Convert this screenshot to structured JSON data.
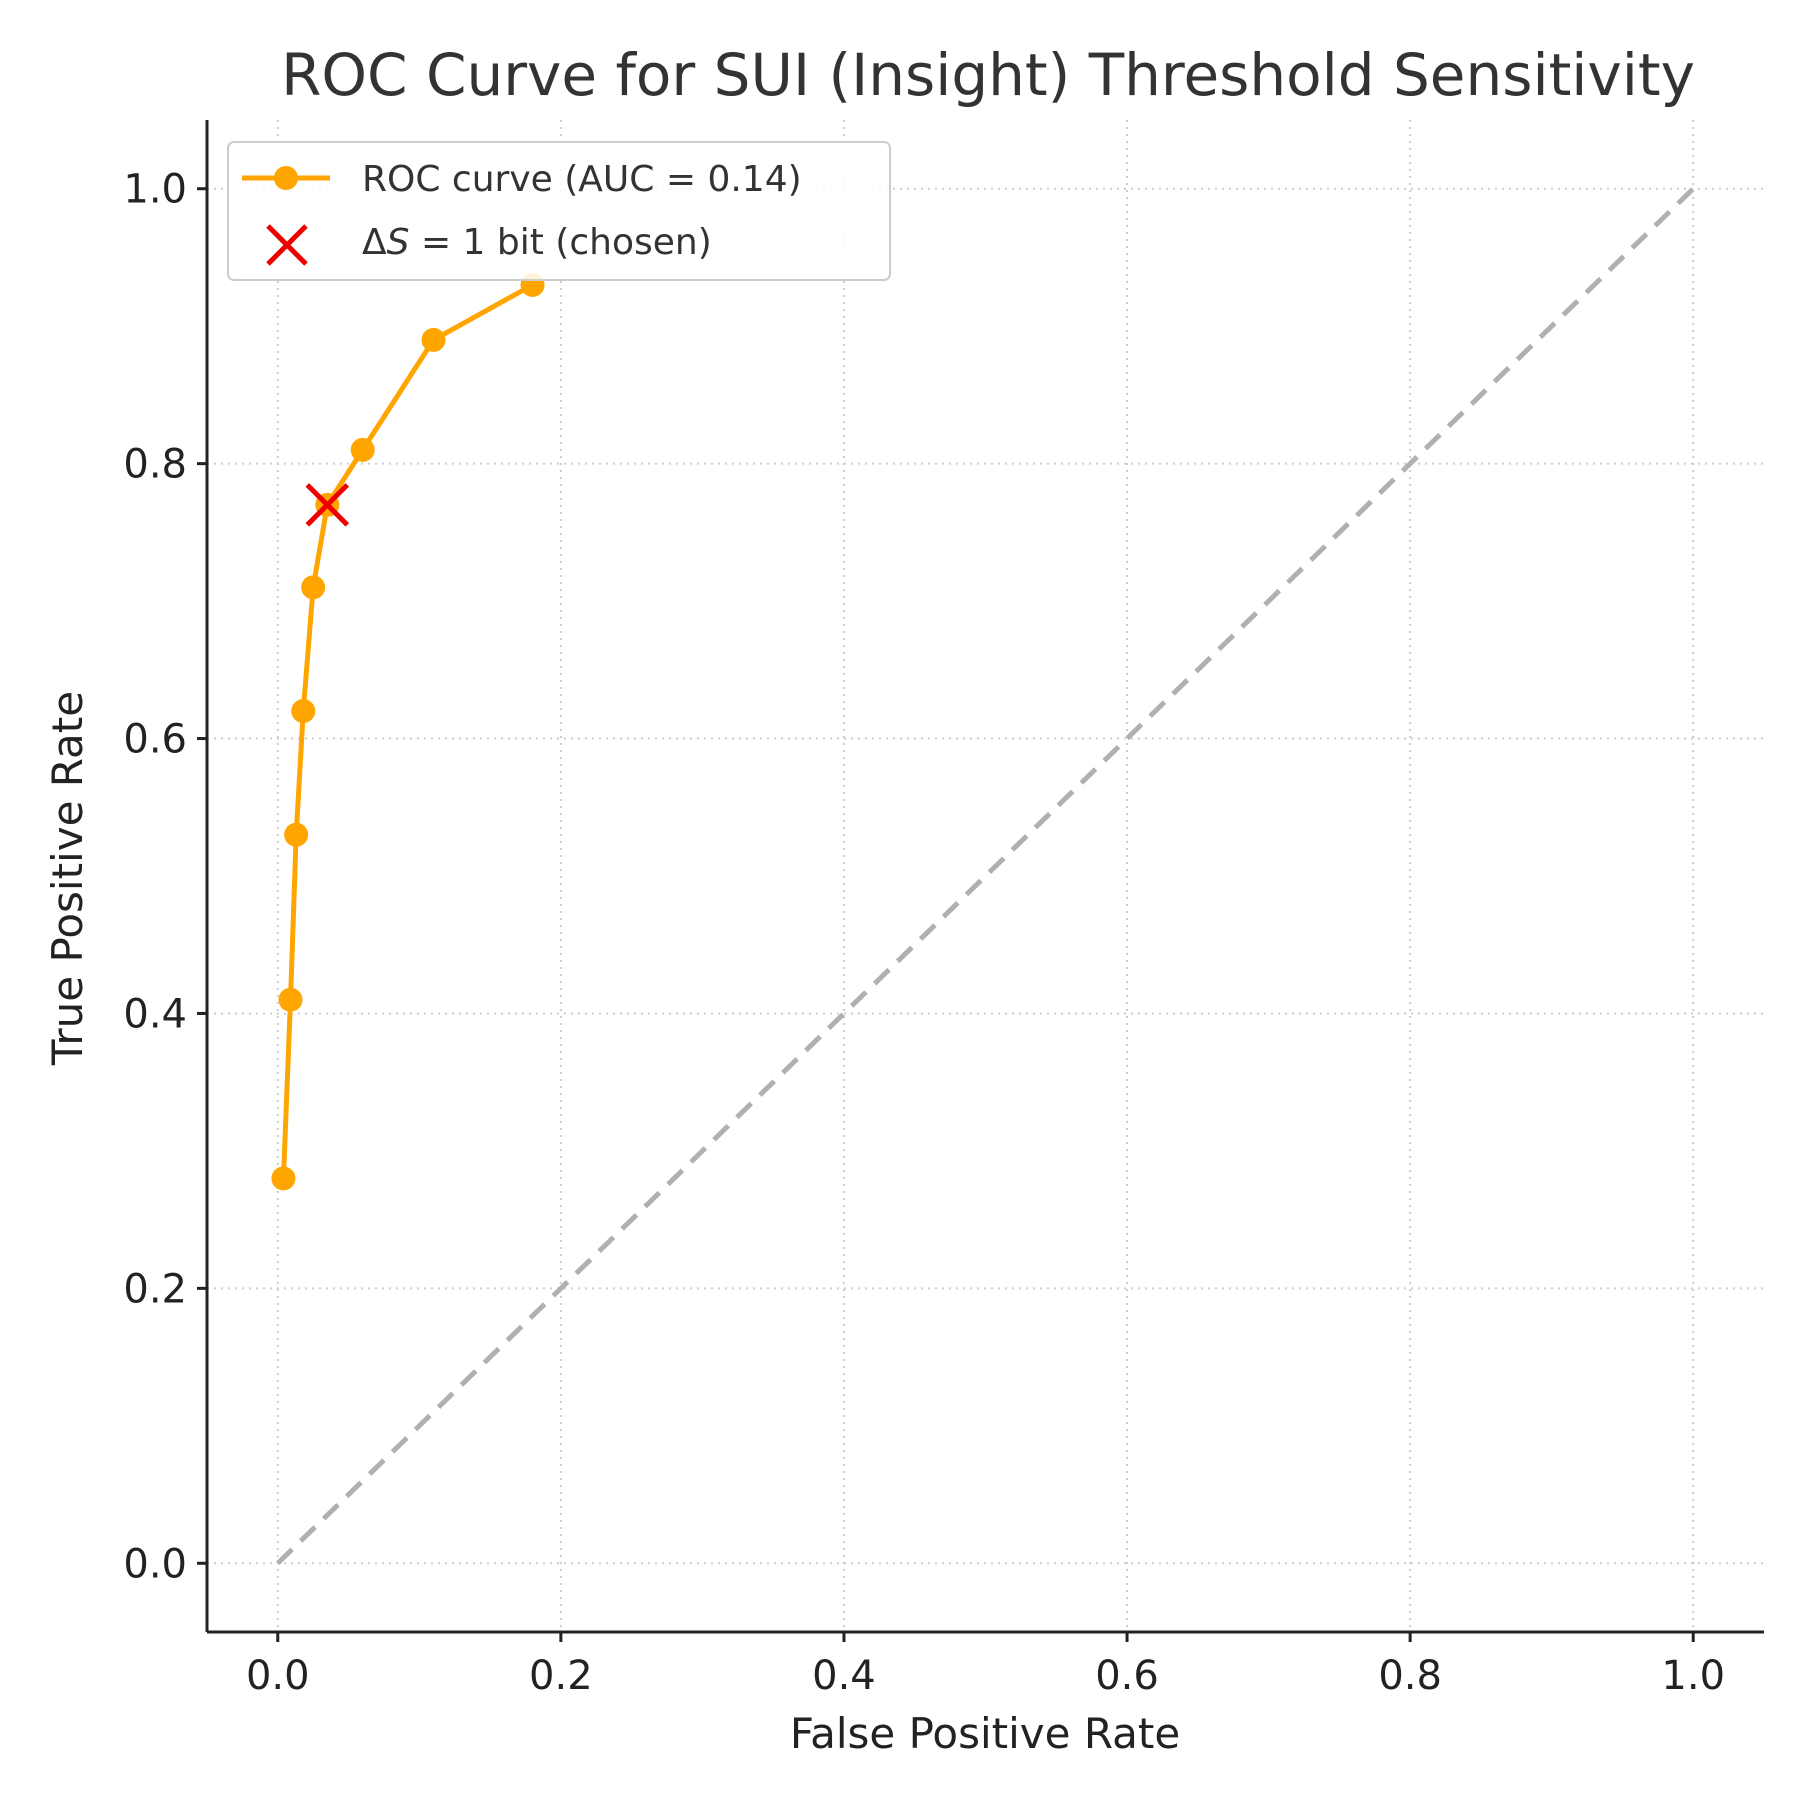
{
  "chart_data": {
    "type": "line",
    "title": "ROC Curve for SUI (Insight) Threshold Sensitivity",
    "xlabel": "False Positive Rate",
    "ylabel": "True Positive Rate",
    "xlim": [
      -0.05,
      1.05
    ],
    "ylim": [
      -0.05,
      1.05
    ],
    "xticks": [
      0.0,
      0.2,
      0.4,
      0.6,
      0.8,
      1.0
    ],
    "yticks": [
      0.0,
      0.2,
      0.4,
      0.6,
      0.8,
      1.0
    ],
    "xtick_labels": [
      "0.0",
      "0.2",
      "0.4",
      "0.6",
      "0.8",
      "1.0"
    ],
    "ytick_labels": [
      "0.0",
      "0.2",
      "0.4",
      "0.6",
      "0.8",
      "1.0"
    ],
    "grid": true,
    "legend_position": "top-left",
    "series": [
      {
        "name": "ROC curve (AUC = 0.14)",
        "color": "#FFA500",
        "marker": "circle",
        "x": [
          0.004,
          0.009,
          0.013,
          0.018,
          0.025,
          0.035,
          0.06,
          0.11,
          0.18
        ],
        "y": [
          0.28,
          0.41,
          0.53,
          0.62,
          0.71,
          0.77,
          0.81,
          0.89,
          0.93
        ]
      },
      {
        "name": "chance diagonal",
        "color": "#B0B0B0",
        "style": "dashed",
        "x": [
          0,
          1
        ],
        "y": [
          0,
          1
        ]
      }
    ],
    "highlight_point": {
      "name": "ΔS = 1 bit (chosen)",
      "color": "#EE0000",
      "marker": "x",
      "x": 0.035,
      "y": 0.77
    }
  },
  "legend": {
    "roc_label": "ROC curve (AUC = 0.14)",
    "chosen_label": " = 1 bit (chosen)",
    "chosen_symbol_delta": "Δ",
    "chosen_symbol_s": "S"
  }
}
